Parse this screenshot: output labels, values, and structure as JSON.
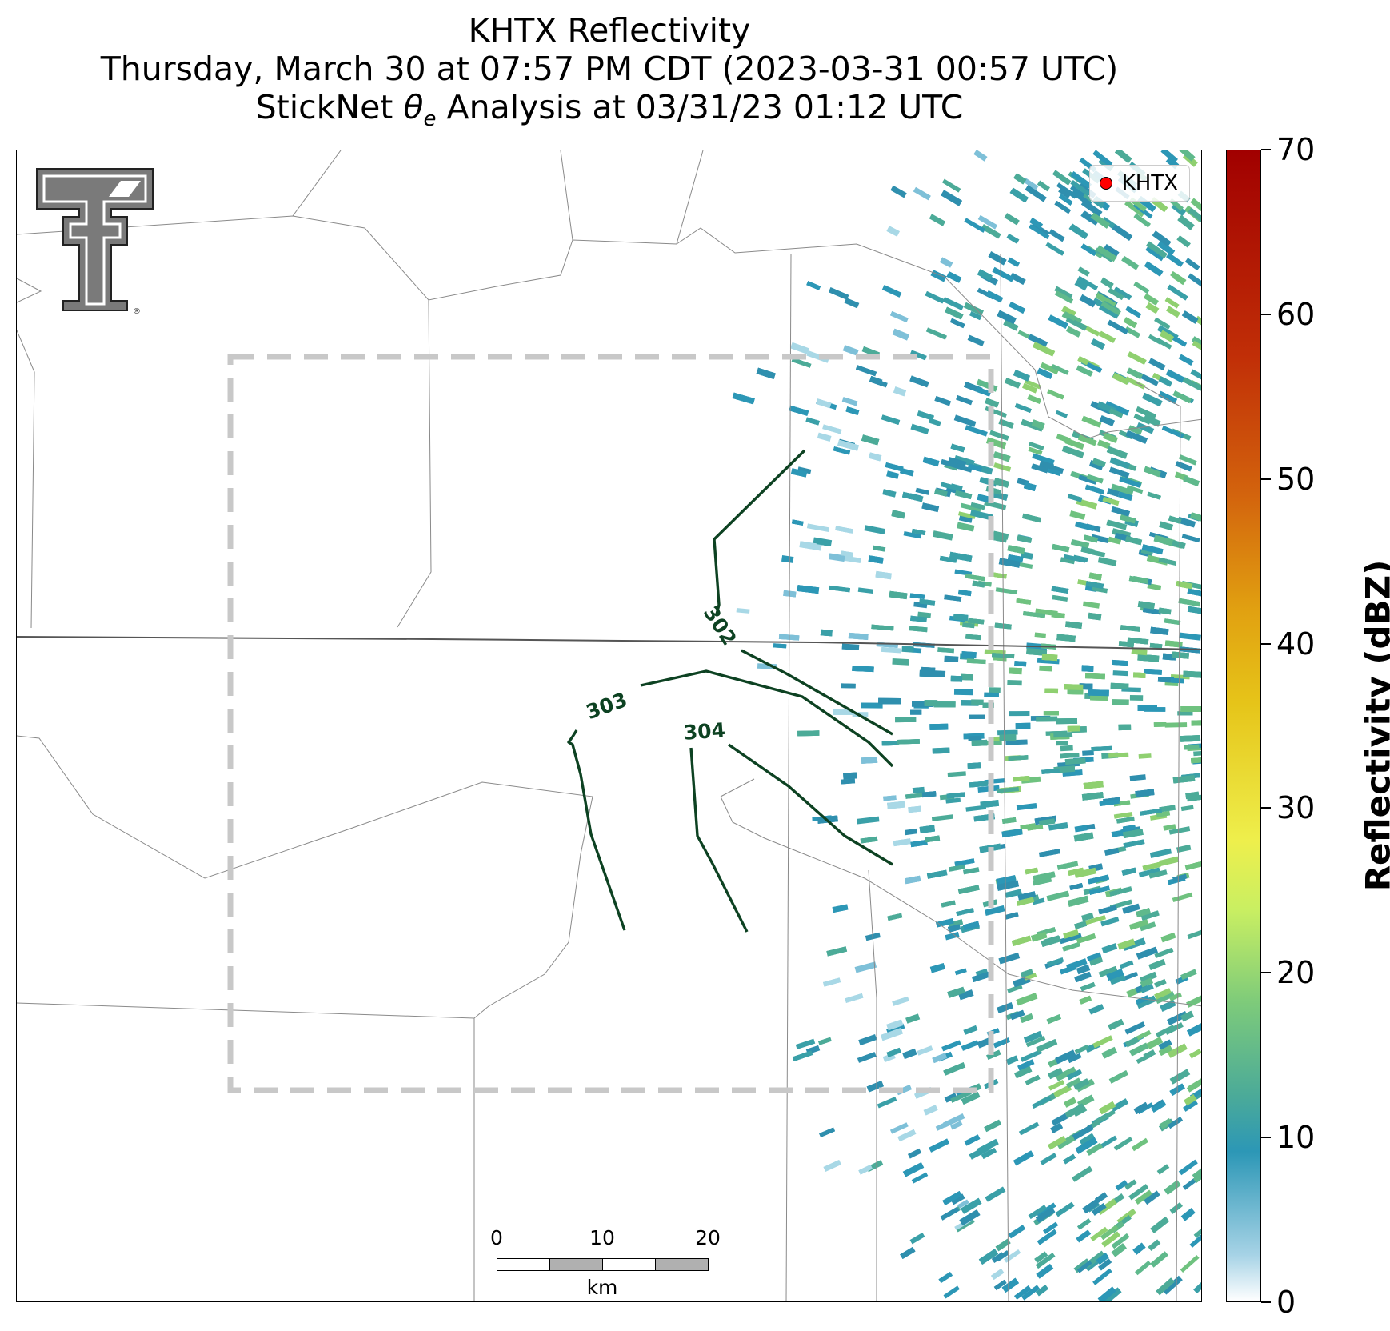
{
  "title": {
    "line1": "KHTX Reflectivity",
    "line2": "Thursday, March 30 at 07:57 PM CDT (2023-03-31 00:57 UTC)",
    "line3_prefix": "StickNet ",
    "line3_theta": "θ",
    "line3_sub": "e",
    "line3_suffix": " Analysis at 03/31/23 01:12 UTC"
  },
  "legend": {
    "label": "KHTX",
    "marker_color": "#ff0000"
  },
  "scale_bar": {
    "ticks": [
      "0",
      "10",
      "20"
    ],
    "unit": "km"
  },
  "colorbar": {
    "label": "Reflectivity (dBZ)",
    "ticks": [
      "0",
      "10",
      "20",
      "30",
      "40",
      "50",
      "60",
      "70"
    ],
    "min": 0,
    "max": 70
  },
  "contours": [
    {
      "value": "302",
      "label": "302"
    },
    {
      "value": "303",
      "label": "303"
    },
    {
      "value": "304",
      "label": "304"
    }
  ],
  "colors": {
    "contour": "#0d4222",
    "boundary": "#8a8a8a",
    "analysis_domain": "#c8c8c8",
    "logo_gray": "#7a7a7a"
  },
  "logo": {
    "icon": "texas-tech-double-t-logo"
  }
}
